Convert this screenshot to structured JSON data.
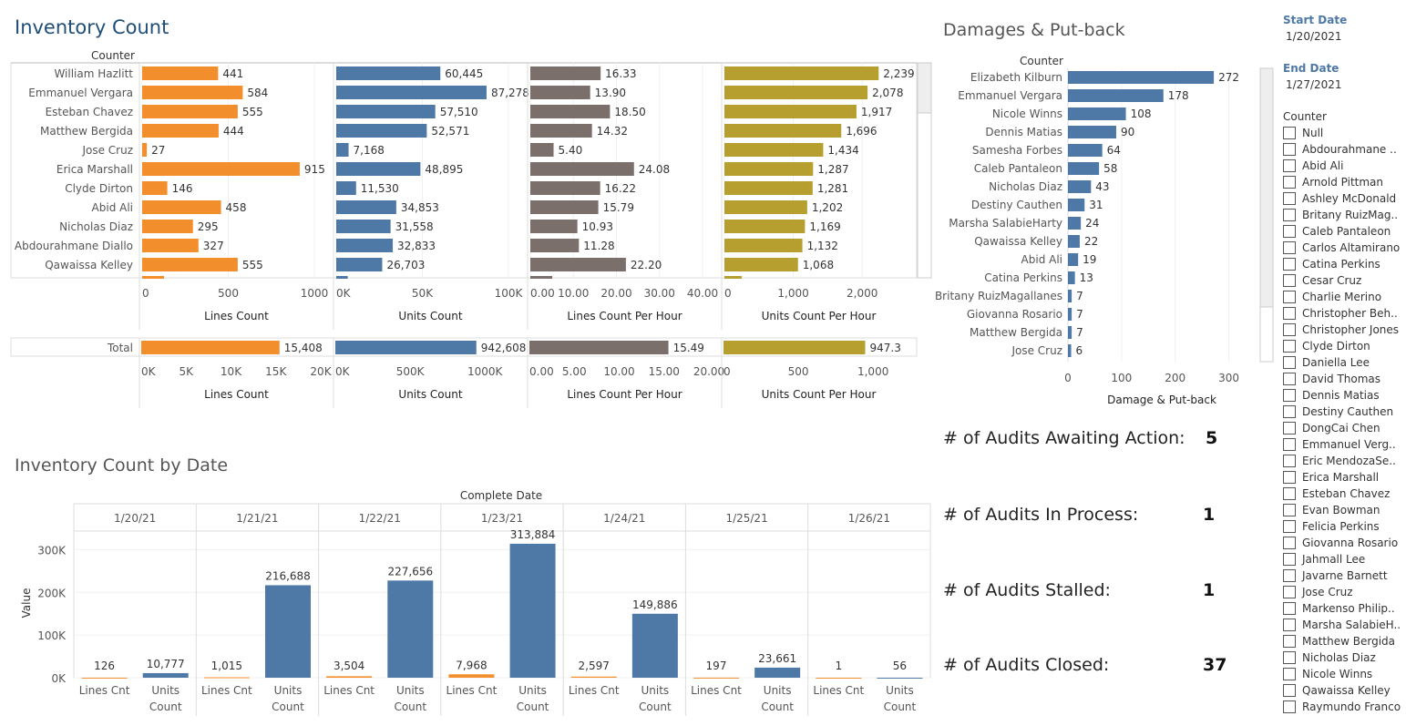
{
  "titles": {
    "inventory_count": "Inventory Count",
    "damages": "Damages & Put-back",
    "by_date": "Inventory Count by Date"
  },
  "colors": {
    "orange": "#f28e2b",
    "blue": "#4e79a7",
    "gray": "#7b6f6c",
    "gold": "#b79f2f"
  },
  "chart_data": [
    {
      "type": "bar",
      "orientation": "horizontal",
      "row_header": "Counter",
      "categories": [
        "William Hazlitt",
        "Emmanuel Vergara",
        "Esteban Chavez",
        "Matthew Bergida",
        "Jose Cruz",
        "Erica Marshall",
        "Clyde Dirton",
        "Abid Ali",
        "Nicholas Diaz",
        "Abdourahmane Diallo",
        "Qawaissa Kelley"
      ],
      "panels": [
        {
          "xlabel": "Lines Count",
          "values": [
            441,
            584,
            555,
            444,
            27,
            915,
            146,
            458,
            295,
            327,
            555
          ],
          "labels": [
            "441",
            "584",
            "555",
            "444",
            "27",
            "915",
            "146",
            "458",
            "295",
            "327",
            "555"
          ],
          "xlim": [
            0,
            1000
          ],
          "ticks": [
            0,
            500,
            1000
          ],
          "tick_labels": [
            "0",
            "500",
            "1000"
          ],
          "color": "#f28e2b"
        },
        {
          "xlabel": "Units Count",
          "values": [
            60445,
            87278,
            57510,
            52571,
            7168,
            48895,
            11530,
            34853,
            31558,
            32833,
            26703
          ],
          "labels": [
            "60,445",
            "87,278",
            "57,510",
            "52,571",
            "7,168",
            "48,895",
            "11,530",
            "34,853",
            "31,558",
            "32,833",
            "26,703"
          ],
          "xlim": [
            0,
            100000
          ],
          "ticks": [
            0,
            50000,
            100000
          ],
          "tick_labels": [
            "0K",
            "50K",
            "100K"
          ],
          "color": "#4e79a7"
        },
        {
          "xlabel": "Lines Count Per Hour",
          "values": [
            16.33,
            13.9,
            18.5,
            14.32,
            5.4,
            24.08,
            16.22,
            15.79,
            10.93,
            11.28,
            22.2
          ],
          "labels": [
            "16.33",
            "13.90",
            "18.50",
            "14.32",
            "5.40",
            "24.08",
            "16.22",
            "15.79",
            "10.93",
            "11.28",
            "22.20"
          ],
          "xlim": [
            0,
            40
          ],
          "ticks": [
            0,
            10,
            20,
            30,
            40
          ],
          "tick_labels": [
            "0.00",
            "10.00",
            "20.00",
            "30.00",
            "40.00"
          ],
          "color": "#7b6f6c"
        },
        {
          "xlabel": "Units Count Per Hour",
          "values": [
            2239,
            2078,
            1917,
            1696,
            1434,
            1287,
            1281,
            1202,
            1169,
            1132,
            1068
          ],
          "labels": [
            "2,239",
            "2,078",
            "1,917",
            "1,696",
            "1,434",
            "1,287",
            "1,281",
            "1,202",
            "1,169",
            "1,132",
            "1,068"
          ],
          "xlim": [
            0,
            2500
          ],
          "ticks": [
            0,
            1000,
            2000
          ],
          "tick_labels": [
            "0",
            "1,000",
            "2,000"
          ],
          "color": "#b79f2f"
        }
      ]
    },
    {
      "type": "bar",
      "orientation": "horizontal",
      "categories": [
        "Total"
      ],
      "panels": [
        {
          "xlabel": "Lines Count",
          "values": [
            15408
          ],
          "labels": [
            "15,408"
          ],
          "xlim": [
            0,
            20000
          ],
          "ticks": [
            0,
            5000,
            10000,
            15000,
            20000
          ],
          "tick_labels": [
            "0K",
            "5K",
            "10K",
            "15K",
            "20K"
          ],
          "color": "#f28e2b"
        },
        {
          "xlabel": "Units Count",
          "values": [
            942608
          ],
          "labels": [
            "942,608"
          ],
          "xlim": [
            0,
            1200000
          ],
          "ticks": [
            0,
            500000,
            1000000
          ],
          "tick_labels": [
            "0K",
            "500K",
            "1000K"
          ],
          "color": "#4e79a7"
        },
        {
          "xlabel": "Lines Count Per Hour",
          "values": [
            15.49
          ],
          "labels": [
            "15.49"
          ],
          "xlim": [
            0,
            20
          ],
          "ticks": [
            0,
            5,
            10,
            15,
            20
          ],
          "tick_labels": [
            "0.00",
            "5.00",
            "10.00",
            "15.00",
            "20.00"
          ],
          "color": "#7b6f6c"
        },
        {
          "xlabel": "Units Count Per Hour",
          "values": [
            947.3
          ],
          "labels": [
            "947.3"
          ],
          "xlim": [
            0,
            1200
          ],
          "ticks": [
            0,
            500,
            1000
          ],
          "tick_labels": [
            "0",
            "500",
            "1,000"
          ],
          "color": "#b79f2f"
        }
      ]
    },
    {
      "type": "bar",
      "orientation": "horizontal",
      "row_header": "Counter",
      "xlabel": "Damage & Put-back",
      "categories": [
        "Elizabeth Kilburn",
        "Emmanuel Vergara",
        "Nicole Winns",
        "Dennis Matias",
        "Samesha Forbes",
        "Caleb Pantaleon",
        "Nicholas Diaz",
        "Destiny Cauthen",
        "Marsha SalabieHarty",
        "Qawaissa Kelley",
        "Abid Ali",
        "Catina Perkins",
        "Britany RuizMagallanes",
        "Giovanna Rosario",
        "Matthew Bergida",
        "Jose Cruz"
      ],
      "values": [
        272,
        178,
        108,
        90,
        64,
        58,
        43,
        31,
        24,
        22,
        19,
        13,
        7,
        7,
        7,
        6
      ],
      "xlim": [
        0,
        350
      ],
      "ticks": [
        0,
        100,
        200,
        300
      ],
      "tick_labels": [
        "0",
        "100",
        "200",
        "300"
      ],
      "color": "#4e79a7"
    },
    {
      "type": "bar",
      "title": "Complete Date",
      "ylabel": "Value",
      "x": [
        "1/20/21",
        "1/21/21",
        "1/22/21",
        "1/23/21",
        "1/24/21",
        "1/25/21",
        "1/26/21"
      ],
      "sub_categories": [
        [
          "Lines Cnt"
        ],
        [
          "Units",
          "Count"
        ]
      ],
      "series": [
        {
          "name": "Lines Cnt",
          "values": [
            126,
            1015,
            3504,
            7968,
            2597,
            197,
            1
          ],
          "labels": [
            "126",
            "1,015",
            "3,504",
            "7,968",
            "2,597",
            "197",
            "1"
          ],
          "color": "#f28e2b"
        },
        {
          "name": "Units Count",
          "values": [
            10777,
            216688,
            227656,
            313884,
            149886,
            23661,
            56
          ],
          "labels": [
            "10,777",
            "216,688",
            "227,656",
            "313,884",
            "149,886",
            "23,661",
            "56"
          ],
          "color": "#4e79a7"
        }
      ],
      "ylim": [
        0,
        350000
      ],
      "ticks": [
        0,
        100000,
        200000,
        300000
      ],
      "tick_labels": [
        "0K",
        "100K",
        "200K",
        "300K"
      ]
    }
  ],
  "kpis": [
    {
      "label": "# of Audits Awaiting Action:",
      "value": "5"
    },
    {
      "label": "# of Audits In Process:",
      "value": "1"
    },
    {
      "label": "# of Audits Stalled:",
      "value": "1"
    },
    {
      "label": "# of Audits Closed:",
      "value": "37"
    }
  ],
  "filters": {
    "start_label": "Start Date",
    "start_value": "1/20/2021",
    "end_label": "End Date",
    "end_value": "1/27/2021",
    "counter_label": "Counter",
    "counter_items": [
      "Null",
      "Abdourahmane ..",
      "Abid Ali",
      "Arnold Pittman",
      "Ashley McDonald",
      "Britany RuizMag..",
      "Caleb Pantaleon",
      "Carlos Altamirano",
      "Catina Perkins",
      "Cesar Cruz",
      "Charlie Merino",
      "Christopher Beh..",
      "Christopher Jones",
      "Clyde Dirton",
      "Daniella Lee",
      "David Thomas",
      "Dennis Matias",
      "Destiny Cauthen",
      "DongCai Chen",
      "Emmanuel Verg..",
      "Eric MendozaSe..",
      "Erica Marshall",
      "Esteban Chavez",
      "Evan Bowman",
      "Felicia Perkins",
      "Giovanna Rosario",
      "Jahmall Lee",
      "Javarne Barnett",
      "Jose Cruz",
      "Markenso Philip..",
      "Marsha SalabieH..",
      "Matthew Bergida",
      "Nicholas Diaz",
      "Nicole Winns",
      "Qawaissa Kelley",
      "Raymundo Franco"
    ]
  }
}
